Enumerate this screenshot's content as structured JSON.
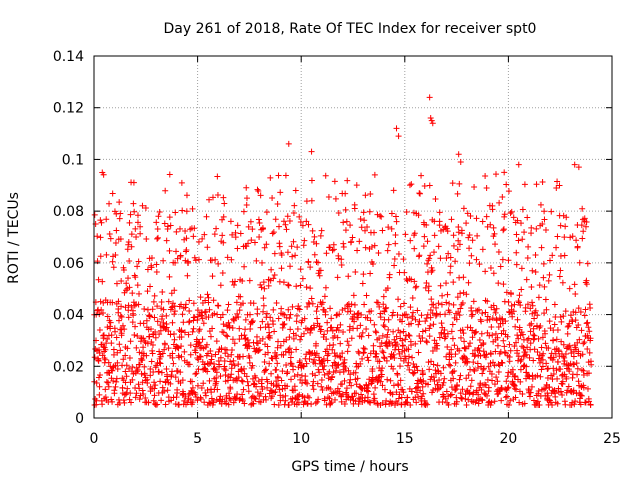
{
  "chart_data": {
    "type": "scatter",
    "title": "Day 261 of 2018, Rate Of TEC Index for receiver spt0",
    "xlabel": "GPS time / hours",
    "ylabel": "ROTI / TECUs",
    "xlim": [
      0,
      25
    ],
    "ylim": [
      0,
      0.14
    ],
    "x_ticks": [
      0,
      5,
      10,
      15,
      20,
      25
    ],
    "x_tick_labels": [
      "0",
      "5",
      "10",
      "15",
      "20",
      "25"
    ],
    "y_ticks": [
      0,
      0.02,
      0.04,
      0.06,
      0.08,
      0.1,
      0.12,
      0.14
    ],
    "y_tick_labels": [
      "0",
      "0.02",
      "0.04",
      "0.06",
      "0.08",
      "0.1",
      "0.12",
      "0.14"
    ],
    "grid": true,
    "marker": "+",
    "series": [
      {
        "name": "spt0",
        "color": "#ff0000",
        "x_range": [
          0,
          24
        ],
        "typical_range": [
          0.005,
          0.08
        ],
        "peak_points": [
          {
            "x": 9.4,
            "y": 0.106
          },
          {
            "x": 10.5,
            "y": 0.103
          },
          {
            "x": 14.6,
            "y": 0.112
          },
          {
            "x": 14.7,
            "y": 0.109
          },
          {
            "x": 16.2,
            "y": 0.124
          },
          {
            "x": 16.25,
            "y": 0.116
          },
          {
            "x": 16.3,
            "y": 0.115
          },
          {
            "x": 16.35,
            "y": 0.114
          },
          {
            "x": 17.6,
            "y": 0.102
          },
          {
            "x": 17.7,
            "y": 0.099
          },
          {
            "x": 20.5,
            "y": 0.098
          },
          {
            "x": 23.2,
            "y": 0.098
          },
          {
            "x": 23.4,
            "y": 0.097
          }
        ]
      }
    ]
  }
}
